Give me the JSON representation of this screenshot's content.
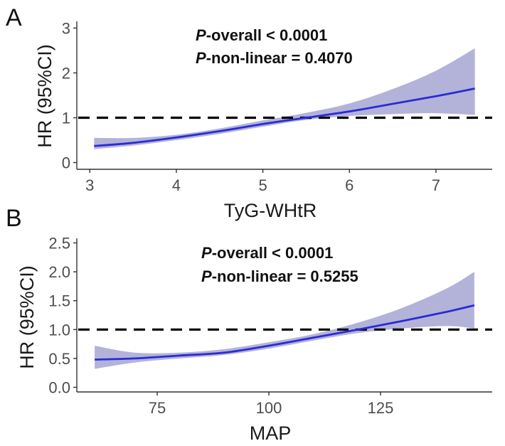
{
  "chart_data": [
    {
      "panel": "A",
      "type": "line",
      "xlabel": "TyG-WHtR",
      "ylabel": "HR (95%CI)",
      "xlim": [
        2.85,
        7.65
      ],
      "ylim": [
        -0.15,
        3.15
      ],
      "xticks": [
        3,
        4,
        5,
        6,
        7
      ],
      "yticks": [
        0,
        1,
        2,
        3
      ],
      "tick_labels_x": [
        "3",
        "4",
        "5",
        "6",
        "7"
      ],
      "tick_labels_y": [
        "0",
        "1",
        "2",
        "3"
      ],
      "reference_line": 1,
      "annotation": {
        "line1_prefix": "P",
        "line1_rest": "-overall < 0.0001",
        "line2_prefix": "P",
        "line2_rest": "-non-linear = 0.4070"
      },
      "series": [
        {
          "name": "HR",
          "x": [
            3.05,
            3.5,
            4.0,
            4.5,
            5.0,
            5.5,
            6.0,
            6.5,
            7.0,
            7.45
          ],
          "y": [
            0.37,
            0.44,
            0.56,
            0.7,
            0.86,
            1.0,
            1.14,
            1.31,
            1.48,
            1.65
          ],
          "lower": [
            0.3,
            0.38,
            0.5,
            0.64,
            0.8,
            0.95,
            1.04,
            1.08,
            1.1,
            1.06
          ],
          "upper": [
            0.55,
            0.55,
            0.62,
            0.76,
            0.94,
            1.11,
            1.32,
            1.64,
            2.05,
            2.55
          ]
        }
      ]
    },
    {
      "panel": "B",
      "type": "line",
      "xlabel": "MAP",
      "ylabel": "HR (95%CI)",
      "xlim": [
        57,
        150
      ],
      "ylim": [
        -0.08,
        2.58
      ],
      "xticks": [
        75,
        100,
        125
      ],
      "yticks": [
        0.0,
        0.5,
        1.0,
        1.5,
        2.0,
        2.5
      ],
      "tick_labels_x": [
        "75",
        "100",
        "125"
      ],
      "tick_labels_y": [
        "0.0",
        "0.5",
        "1.0",
        "1.5",
        "2.0",
        "2.5"
      ],
      "reference_line": 1.0,
      "annotation": {
        "line1_prefix": "P",
        "line1_rest": "-overall < 0.0001",
        "line2_prefix": "P",
        "line2_rest": "-non-linear = 0.5255"
      },
      "series": [
        {
          "name": "HR",
          "x": [
            61,
            70,
            80,
            90,
            100,
            110,
            120,
            130,
            140,
            146
          ],
          "y": [
            0.48,
            0.5,
            0.55,
            0.6,
            0.72,
            0.86,
            1.0,
            1.15,
            1.31,
            1.42
          ],
          "lower": [
            0.32,
            0.43,
            0.5,
            0.56,
            0.67,
            0.81,
            0.94,
            1.02,
            1.06,
            1.02
          ],
          "upper": [
            0.72,
            0.6,
            0.6,
            0.66,
            0.78,
            0.92,
            1.12,
            1.38,
            1.72,
            2.0
          ]
        }
      ]
    }
  ]
}
